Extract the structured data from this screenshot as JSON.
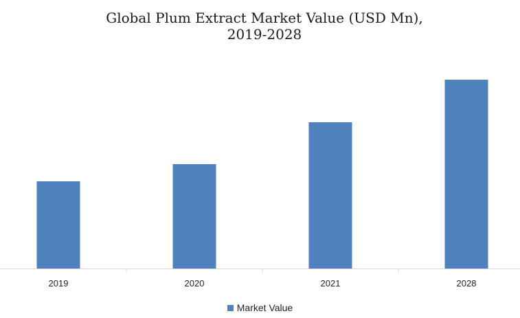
{
  "chart_data": {
    "type": "bar",
    "title": "Global Plum Extract Market Value (USD Mn),",
    "subtitle": "2019-2028",
    "xlabel": "",
    "ylabel": "",
    "categories": [
      "2019",
      "2020",
      "2021",
      "2028"
    ],
    "series": [
      {
        "name": "Market Value",
        "values": [
          127,
          152,
          213,
          275
        ],
        "color": "#4f81bd"
      }
    ],
    "ylim": [
      0,
      300
    ],
    "grid": false,
    "legend": "bottom"
  }
}
